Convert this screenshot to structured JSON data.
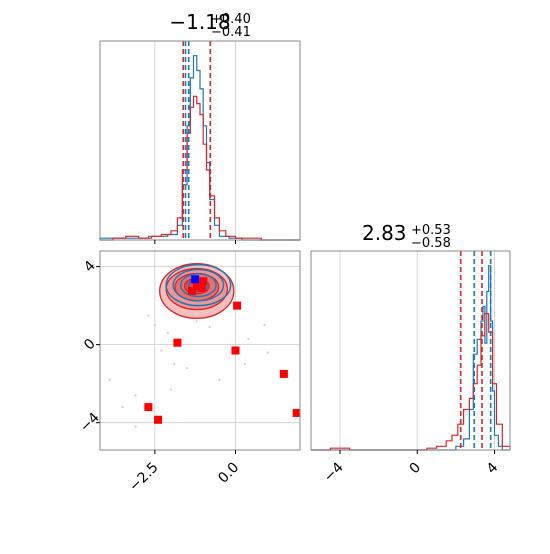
{
  "chart_data": {
    "type": "corner",
    "colors": {
      "samples_a": "#1f77b4",
      "samples_b": "#d62728",
      "points": "#ff0000",
      "highlight": "#0000ff"
    },
    "grid": true,
    "panels": {
      "hist_x": {
        "title_value": "−1.18",
        "title_plus": "+0.40",
        "title_minus": "−0.41",
        "xlim": [
          -4.2,
          2.0
        ],
        "quantile_lines": [
          {
            "x": -1.62,
            "color": "#d62728"
          },
          {
            "x": -1.55,
            "color": "#1f77b4"
          },
          {
            "x": -1.45,
            "color": "#1f77b4"
          },
          {
            "x": -0.78,
            "color": "#d62728"
          }
        ],
        "series": [
          {
            "name": "",
            "color": "#1f77b4",
            "bin_edges": [
              -4.2,
              -3.9,
              -3.6,
              -3.3,
              -3.0,
              -2.7,
              -2.4,
              -2.1,
              -1.8,
              -1.65,
              -1.5,
              -1.4,
              -1.3,
              -1.2,
              -1.1,
              -1.0,
              -0.9,
              -0.8,
              -0.65,
              -0.5,
              -0.2,
              0.2,
              0.6,
              1.0,
              1.4,
              2.0
            ],
            "counts": [
              0.01,
              0.01,
              0.01,
              0.01,
              0.01,
              0.02,
              0.02,
              0.03,
              0.08,
              0.3,
              0.62,
              0.88,
              1.0,
              0.92,
              0.82,
              0.62,
              0.42,
              0.22,
              0.08,
              0.02,
              0.01,
              0.0,
              0.0,
              0.0,
              0.0
            ]
          },
          {
            "name": "",
            "color": "#d62728",
            "bin_edges": [
              -4.2,
              -3.8,
              -3.4,
              -3.0,
              -2.6,
              -2.3,
              -2.0,
              -1.8,
              -1.65,
              -1.5,
              -1.4,
              -1.3,
              -1.2,
              -1.1,
              -1.0,
              -0.9,
              -0.8,
              -0.65,
              -0.5,
              -0.3,
              0.0,
              0.4,
              0.8,
              1.2,
              1.6,
              2.0
            ],
            "counts": [
              0.0,
              0.01,
              0.02,
              0.01,
              0.02,
              0.03,
              0.05,
              0.12,
              0.38,
              0.58,
              0.72,
              0.78,
              0.74,
              0.68,
              0.52,
              0.38,
              0.24,
              0.12,
              0.05,
              0.02,
              0.01,
              0.01,
              0.0,
              0.0,
              0.0
            ]
          }
        ]
      },
      "hist_y": {
        "title_value": "2.83",
        "title_plus": "+0.53",
        "title_minus": "−0.58",
        "xlim": [
          -5.5,
          4.8
        ],
        "tick_labels": [
          "−4",
          "0",
          "4"
        ],
        "tick_values": [
          -4,
          0,
          4
        ],
        "quantile_lines": [
          {
            "x": 2.25,
            "color": "#d62728"
          },
          {
            "x": 2.95,
            "color": "#1f77b4"
          },
          {
            "x": 3.35,
            "color": "#d62728"
          },
          {
            "x": 3.8,
            "color": "#1f77b4"
          }
        ],
        "series": [
          {
            "name": "",
            "color": "#1f77b4",
            "bin_edges": [
              -5.5,
              2.0,
              2.4,
              2.7,
              2.9,
              3.1,
              3.3,
              3.4,
              3.5,
              3.6,
              3.7,
              3.8,
              3.9,
              4.0,
              4.2,
              4.4,
              4.8
            ],
            "counts": [
              0.0,
              0.02,
              0.06,
              0.22,
              0.52,
              0.6,
              0.7,
              0.78,
              0.58,
              0.86,
              1.0,
              0.7,
              0.32,
              0.08,
              0.02,
              0.0
            ]
          },
          {
            "name": "",
            "color": "#d62728",
            "bin_edges": [
              -5.5,
              -4.5,
              -4.0,
              -3.5,
              0.5,
              1.0,
              1.5,
              1.8,
              2.1,
              2.4,
              2.7,
              2.9,
              3.1,
              3.3,
              3.5,
              3.7,
              3.9,
              4.1,
              4.4,
              4.8
            ],
            "counts": [
              0.0,
              0.01,
              0.01,
              0.0,
              0.01,
              0.02,
              0.05,
              0.08,
              0.14,
              0.22,
              0.28,
              0.36,
              0.46,
              0.62,
              0.74,
              0.64,
              0.36,
              0.14,
              0.02
            ]
          }
        ]
      },
      "scatter": {
        "xlim": [
          -4.2,
          2.0
        ],
        "ylim": [
          -5.4,
          4.8
        ],
        "x_tick_labels": [
          "−2.5",
          "0.0"
        ],
        "x_tick_values": [
          -2.5,
          0.0
        ],
        "y_tick_labels": [
          "−4",
          "0",
          "4"
        ],
        "y_tick_values": [
          -4,
          0,
          4
        ],
        "red_points": [
          [
            -1.2,
            3.0
          ],
          [
            -1.05,
            2.9
          ],
          [
            -1.0,
            3.25
          ],
          [
            -1.35,
            2.75
          ],
          [
            0.05,
            2.0
          ],
          [
            -1.8,
            0.1
          ],
          [
            0.0,
            -0.3
          ],
          [
            1.5,
            -1.5
          ],
          [
            -2.7,
            -3.2
          ],
          [
            -2.4,
            -3.85
          ],
          [
            1.9,
            -3.5
          ]
        ],
        "blue_points": [
          [
            -1.25,
            3.35
          ]
        ],
        "scatter_cloud": [
          [
            -2.5,
            1.0
          ],
          [
            -2.1,
            0.6
          ],
          [
            -2.3,
            -0.3
          ],
          [
            -1.9,
            -1.0
          ],
          [
            -3.1,
            -2.6
          ],
          [
            -3.5,
            -3.2
          ],
          [
            -3.1,
            -4.2
          ],
          [
            -2.0,
            -2.3
          ],
          [
            -1.5,
            -1.2
          ],
          [
            -0.8,
            0.9
          ],
          [
            0.4,
            0.3
          ],
          [
            0.9,
            1.0
          ],
          [
            1.0,
            -0.4
          ],
          [
            -0.5,
            -1.8
          ],
          [
            -2.7,
            1.5
          ],
          [
            -3.9,
            -1.8
          ],
          [
            -1.2,
            1.2
          ],
          [
            0.3,
            -1.0
          ]
        ],
        "contours": {
          "blue": [
            {
              "cx": -1.15,
              "cy": 3.05,
              "rx": 1.0,
              "ry": 1.05
            },
            {
              "cx": -1.15,
              "cy": 3.05,
              "rx": 0.78,
              "ry": 0.8
            },
            {
              "cx": -1.15,
              "cy": 3.05,
              "rx": 0.55,
              "ry": 0.58
            },
            {
              "cx": -1.15,
              "cy": 3.05,
              "rx": 0.3,
              "ry": 0.32
            }
          ],
          "red": [
            {
              "cx": -1.2,
              "cy": 2.75,
              "rx": 1.15,
              "ry": 1.4
            },
            {
              "cx": -1.2,
              "cy": 2.85,
              "rx": 0.95,
              "ry": 1.05
            },
            {
              "cx": -1.2,
              "cy": 2.95,
              "rx": 0.68,
              "ry": 0.7
            },
            {
              "cx": -1.2,
              "cy": 3.0,
              "rx": 0.38,
              "ry": 0.4
            }
          ]
        }
      }
    }
  }
}
